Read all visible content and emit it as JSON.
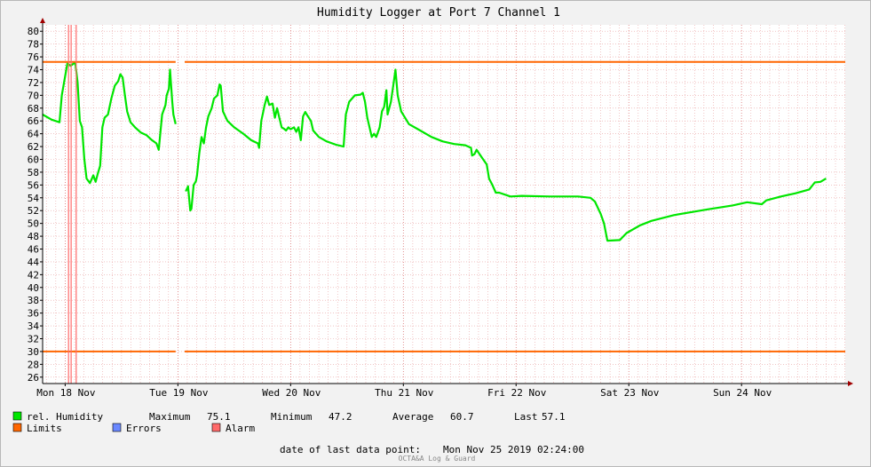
{
  "chart_data": {
    "type": "line",
    "title": "Humidity Logger at Port 7 Channel 1",
    "xlabel": "",
    "ylabel": "",
    "ylim": [
      25,
      81
    ],
    "y_ticks": [
      26,
      28,
      30,
      32,
      34,
      36,
      38,
      40,
      42,
      44,
      46,
      48,
      50,
      52,
      54,
      56,
      58,
      60,
      62,
      64,
      66,
      68,
      70,
      72,
      74,
      76,
      78,
      80
    ],
    "x_unit": "days since Mon 18 Nov 00:00",
    "xlim": [
      -0.2,
      6.92
    ],
    "x_tick_labels": [
      {
        "x": 0,
        "label": "Mon 18 Nov"
      },
      {
        "x": 1,
        "label": "Tue 19 Nov"
      },
      {
        "x": 2,
        "label": "Wed 20 Nov"
      },
      {
        "x": 3,
        "label": "Thu 21 Nov"
      },
      {
        "x": 4,
        "label": "Fri 22 Nov"
      },
      {
        "x": 5,
        "label": "Sat 23 Nov"
      },
      {
        "x": 6,
        "label": "Sun 24 Nov"
      }
    ],
    "series": [
      {
        "name": "rel. Humidity",
        "color": "#00e600",
        "segments": [
          [
            [
              -0.2,
              67
            ],
            [
              -0.12,
              66.2
            ],
            [
              -0.05,
              65.8
            ],
            [
              -0.03,
              70
            ],
            [
              0.0,
              73
            ],
            [
              0.02,
              75
            ],
            [
              0.05,
              74.6
            ],
            [
              0.07,
              74.9
            ],
            [
              0.09,
              75.1
            ],
            [
              0.11,
              72
            ],
            [
              0.13,
              66
            ],
            [
              0.15,
              65
            ],
            [
              0.17,
              60
            ],
            [
              0.19,
              57
            ],
            [
              0.22,
              56.3
            ],
            [
              0.25,
              57.5
            ],
            [
              0.27,
              56.5
            ],
            [
              0.29,
              57.8
            ],
            [
              0.31,
              59
            ],
            [
              0.33,
              65
            ],
            [
              0.35,
              66.5
            ],
            [
              0.38,
              67
            ],
            [
              0.41,
              69.5
            ],
            [
              0.44,
              71.5
            ],
            [
              0.47,
              72.2
            ],
            [
              0.49,
              73.3
            ],
            [
              0.51,
              72.8
            ],
            [
              0.53,
              70
            ],
            [
              0.55,
              67.5
            ],
            [
              0.58,
              65.8
            ],
            [
              0.62,
              65
            ],
            [
              0.67,
              64.2
            ],
            [
              0.72,
              63.8
            ],
            [
              0.77,
              63
            ],
            [
              0.81,
              62.5
            ],
            [
              0.83,
              61.5
            ],
            [
              0.86,
              67
            ],
            [
              0.89,
              68.5
            ],
            [
              0.9,
              70
            ],
            [
              0.92,
              71
            ],
            [
              0.93,
              74
            ],
            [
              0.95,
              69
            ],
            [
              0.96,
              67
            ],
            [
              0.98,
              65.5
            ]
          ],
          [
            [
              1.07,
              55
            ],
            [
              1.09,
              55.8
            ],
            [
              1.11,
              52
            ],
            [
              1.12,
              52.3
            ],
            [
              1.14,
              56
            ],
            [
              1.16,
              56.6
            ],
            [
              1.17,
              57.5
            ],
            [
              1.19,
              61
            ],
            [
              1.21,
              63.5
            ],
            [
              1.23,
              62.5
            ],
            [
              1.25,
              65
            ],
            [
              1.27,
              66.7
            ],
            [
              1.3,
              68
            ],
            [
              1.32,
              69.5
            ],
            [
              1.35,
              70
            ],
            [
              1.37,
              71.7
            ],
            [
              1.38,
              71.5
            ],
            [
              1.4,
              67.5
            ],
            [
              1.44,
              66
            ],
            [
              1.5,
              65
            ],
            [
              1.58,
              64
            ],
            [
              1.65,
              63
            ],
            [
              1.71,
              62.5
            ],
            [
              1.72,
              61.8
            ],
            [
              1.74,
              66
            ],
            [
              1.77,
              68.5
            ],
            [
              1.79,
              69.8
            ],
            [
              1.81,
              68.5
            ],
            [
              1.84,
              68.7
            ],
            [
              1.86,
              66.5
            ],
            [
              1.88,
              68
            ],
            [
              1.9,
              66.5
            ],
            [
              1.92,
              65
            ],
            [
              1.94,
              64.8
            ],
            [
              1.96,
              64.5
            ],
            [
              1.98,
              65
            ],
            [
              2.0,
              64.7
            ],
            [
              2.03,
              65
            ],
            [
              2.05,
              64.3
            ],
            [
              2.07,
              65
            ],
            [
              2.09,
              63
            ],
            [
              2.11,
              66.7
            ],
            [
              2.13,
              67.4
            ],
            [
              2.15,
              66.8
            ],
            [
              2.18,
              66
            ],
            [
              2.2,
              64.5
            ],
            [
              2.25,
              63.5
            ],
            [
              2.32,
              62.8
            ],
            [
              2.4,
              62.3
            ],
            [
              2.47,
              62
            ],
            [
              2.49,
              67
            ],
            [
              2.52,
              69
            ],
            [
              2.57,
              70
            ],
            [
              2.62,
              70.1
            ],
            [
              2.64,
              70.4
            ],
            [
              2.66,
              69
            ],
            [
              2.68,
              66.5
            ],
            [
              2.7,
              65
            ],
            [
              2.72,
              63.5
            ],
            [
              2.74,
              64
            ],
            [
              2.76,
              63.5
            ],
            [
              2.79,
              65
            ],
            [
              2.81,
              67.5
            ],
            [
              2.83,
              68.2
            ],
            [
              2.85,
              70.8
            ],
            [
              2.86,
              67
            ],
            [
              2.89,
              69
            ],
            [
              2.91,
              71.5
            ],
            [
              2.93,
              74
            ],
            [
              2.95,
              70
            ],
            [
              2.98,
              67.5
            ],
            [
              3.05,
              65.5
            ],
            [
              3.15,
              64.5
            ],
            [
              3.25,
              63.5
            ],
            [
              3.35,
              62.8
            ],
            [
              3.45,
              62.4
            ],
            [
              3.55,
              62.2
            ],
            [
              3.6,
              61.8
            ],
            [
              3.61,
              60.6
            ],
            [
              3.63,
              60.8
            ],
            [
              3.65,
              61.5
            ],
            [
              3.7,
              60.2
            ],
            [
              3.74,
              59.2
            ],
            [
              3.76,
              57
            ],
            [
              3.79,
              56
            ],
            [
              3.82,
              54.8
            ],
            [
              3.85,
              54.8
            ],
            [
              3.95,
              54.2
            ],
            [
              4.05,
              54.3
            ],
            [
              4.3,
              54.2
            ],
            [
              4.55,
              54.2
            ],
            [
              4.66,
              54
            ],
            [
              4.7,
              53.4
            ],
            [
              4.75,
              51.5
            ],
            [
              4.78,
              50
            ],
            [
              4.81,
              47.3
            ],
            [
              4.92,
              47.4
            ],
            [
              4.98,
              48.5
            ],
            [
              5.1,
              49.7
            ],
            [
              5.2,
              50.4
            ],
            [
              5.4,
              51.3
            ],
            [
              5.7,
              52.2
            ],
            [
              5.92,
              52.8
            ],
            [
              6.05,
              53.3
            ],
            [
              6.18,
              53
            ],
            [
              6.22,
              53.6
            ],
            [
              6.35,
              54.2
            ],
            [
              6.48,
              54.7
            ],
            [
              6.6,
              55.3
            ],
            [
              6.65,
              56.4
            ],
            [
              6.7,
              56.5
            ],
            [
              6.75,
              57
            ]
          ]
        ]
      },
      {
        "name": "Limits",
        "color": "#ff6600",
        "segments": [
          [
            [
              -0.2,
              75.2
            ],
            [
              0.98,
              75.2
            ]
          ],
          [
            [
              1.06,
              75.2
            ],
            [
              6.92,
              75.2
            ]
          ],
          [
            [
              -0.2,
              30
            ],
            [
              0.98,
              30
            ]
          ],
          [
            [
              1.06,
              30
            ],
            [
              6.92,
              30
            ]
          ]
        ]
      },
      {
        "name": "Alarm",
        "color": "#ff6a6a",
        "vlines": [
          0.03,
          0.053,
          0.098
        ]
      }
    ],
    "grid": true
  },
  "legend": {
    "humidity_label": "rel. Humidity",
    "limits_label": "Limits",
    "errors_label": "Errors",
    "alarm_label": "Alarm",
    "errors_color": "#6a88ff"
  },
  "stats": {
    "maximum_label": "Maximum",
    "maximum_value": "75.1",
    "minimum_label": "Minimum",
    "minimum_value": "47.2",
    "average_label": "Average",
    "average_value": "60.7",
    "last_label": "Last",
    "last_value": "57.1"
  },
  "footer": {
    "last_point_label": "date of last data point:",
    "last_point_value": "Mon Nov 25 2019 02:24:00",
    "brand": "OCTA&A Log & Guard"
  }
}
